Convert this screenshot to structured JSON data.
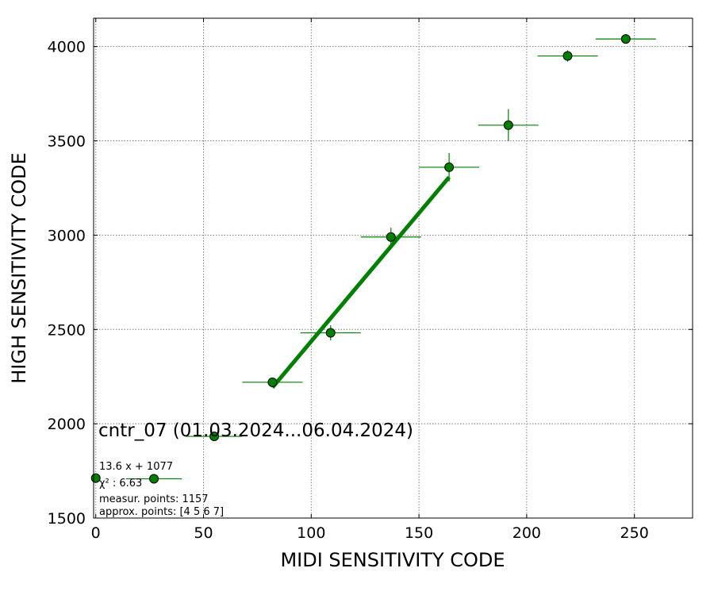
{
  "chart_data": {
    "type": "scatter",
    "xlabel": "MIDI SENSITIVITY CODE",
    "ylabel": "HIGH SENSITIVITY CODE",
    "xlim": [
      -1,
      277
    ],
    "ylim": [
      1500,
      4150
    ],
    "x_ticks": [
      0,
      50,
      100,
      150,
      200,
      250
    ],
    "y_ticks": [
      1500,
      2000,
      2500,
      3000,
      3500,
      4000
    ],
    "grid": true,
    "color": "#008000",
    "points": [
      {
        "x": 0,
        "y": 1712,
        "xerr": 0,
        "yerr": 12
      },
      {
        "x": 27,
        "y": 1708,
        "xerr": 13,
        "yerr": 10
      },
      {
        "x": 55,
        "y": 1933,
        "xerr": 13,
        "yerr": 10
      },
      {
        "x": 82,
        "y": 2220,
        "xerr": 14,
        "yerr": 15
      },
      {
        "x": 109,
        "y": 2482,
        "xerr": 14,
        "yerr": 40
      },
      {
        "x": 137,
        "y": 2990,
        "xerr": 14,
        "yerr": 50
      },
      {
        "x": 164,
        "y": 3360,
        "xerr": 14,
        "yerr": 75
      },
      {
        "x": 191.5,
        "y": 3583,
        "xerr": 14,
        "yerr": 85
      },
      {
        "x": 219,
        "y": 3950,
        "xerr": 14,
        "yerr": 30
      },
      {
        "x": 246,
        "y": 4040,
        "xerr": 14,
        "yerr": 25
      }
    ],
    "fit_line": {
      "slope": 13.6,
      "intercept": 1077,
      "x_range": [
        82,
        164
      ]
    },
    "annotations": {
      "title": "cntr_07 (01.03.2024...06.04.2024)",
      "fit": "13.6 x + 1077",
      "chi2": "χ² : 6.63",
      "measur": "measur. points: 1157",
      "approx": "approx. points: [4 5 6 7]"
    }
  }
}
